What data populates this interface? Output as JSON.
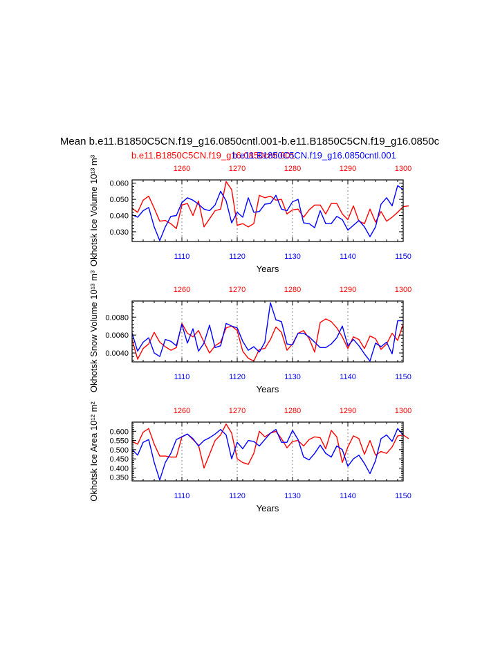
{
  "header": {
    "title": "Mean b.e11.B1850C5CN.f19_g16.0850cntl.001-b.e11.B1850C5CN.f19_g16.0850c",
    "case_red": "b.e11.B1850C5CN.f19_g16.0850cntl.001",
    "case_blue": "b.e11.B1850C5CN.f19_g16.0850cntl.001"
  },
  "colors": {
    "red": "#ff0000",
    "blue": "#0000ff",
    "axis": "#000000",
    "grid": "#808080"
  },
  "chart_data": [
    {
      "type": "line",
      "ylabel": "Okhotsk Ice Volume 10¹³ m³",
      "xlabel": "Years",
      "ylim": [
        0.024,
        0.062
      ],
      "yticks": [
        0.03,
        0.04,
        0.05,
        0.06
      ],
      "ytick_labels": [
        "0.030",
        "0.040",
        "0.050",
        "0.060"
      ],
      "bottom_axis": {
        "xlim": [
          1101,
          1150
        ],
        "ticks": [
          1110,
          1120,
          1130,
          1140,
          1150
        ]
      },
      "top_axis": {
        "xlim": [
          1251,
          1300
        ],
        "ticks": [
          1260,
          1270,
          1280,
          1290,
          1300
        ]
      },
      "series": [
        {
          "color": "red",
          "x_start": 1251,
          "values": [
            0.0445,
            0.042,
            0.0495,
            0.052,
            0.0445,
            0.0365,
            0.037,
            0.035,
            0.032,
            0.0465,
            0.0475,
            0.04,
            0.049,
            0.033,
            0.038,
            0.043,
            0.044,
            0.061,
            0.056,
            0.034,
            0.035,
            0.033,
            0.035,
            0.0525,
            0.051,
            0.052,
            0.0495,
            0.05,
            0.041,
            0.0435,
            0.044,
            0.039,
            0.0435,
            0.0465,
            0.0465,
            0.041,
            0.0475,
            0.0475,
            0.041,
            0.0375,
            0.046,
            0.0365,
            0.035,
            0.044,
            0.036,
            0.0425,
            0.0365,
            0.039,
            0.042,
            0.0455,
            0.046
          ]
        },
        {
          "color": "blue",
          "x_start": 1101,
          "values": [
            0.0405,
            0.039,
            0.043,
            0.045,
            0.033,
            0.0245,
            0.033,
            0.0395,
            0.04,
            0.048,
            0.051,
            0.0495,
            0.047,
            0.044,
            0.043,
            0.0465,
            0.055,
            0.049,
            0.0355,
            0.042,
            0.039,
            0.051,
            0.042,
            0.0425,
            0.047,
            0.0475,
            0.0525,
            0.044,
            0.043,
            0.0485,
            0.05,
            0.0355,
            0.035,
            0.0325,
            0.043,
            0.035,
            0.035,
            0.0395,
            0.0375,
            0.031,
            0.034,
            0.037,
            0.033,
            0.027,
            0.033,
            0.047,
            0.051,
            0.046,
            0.0585,
            0.056
          ]
        }
      ]
    },
    {
      "type": "line",
      "ylabel": "Okhotsk Snow Volume 10¹³ m³",
      "xlabel": "Years",
      "ylim": [
        0.003,
        0.0098
      ],
      "yticks": [
        0.004,
        0.006,
        0.008
      ],
      "ytick_labels": [
        "0.0040",
        "0.0060",
        "0.0080"
      ],
      "bottom_axis": {
        "xlim": [
          1101,
          1150
        ],
        "ticks": [
          1110,
          1120,
          1130,
          1140,
          1150
        ]
      },
      "top_axis": {
        "xlim": [
          1251,
          1300
        ],
        "ticks": [
          1260,
          1270,
          1280,
          1290,
          1300
        ]
      },
      "series": [
        {
          "color": "red",
          "x_start": 1251,
          "values": [
            0.0055,
            0.0033,
            0.0045,
            0.005,
            0.0063,
            0.0052,
            0.0047,
            0.0043,
            0.0046,
            0.0073,
            0.0062,
            0.0058,
            0.0065,
            0.0052,
            0.004,
            0.0048,
            0.0052,
            0.0068,
            0.007,
            0.0065,
            0.0042,
            0.0034,
            0.0031,
            0.0044,
            0.0045,
            0.0055,
            0.0069,
            0.0063,
            0.0043,
            0.005,
            0.0062,
            0.0065,
            0.0056,
            0.0041,
            0.0074,
            0.0078,
            0.0075,
            0.0068,
            0.0058,
            0.0045,
            0.0058,
            0.0055,
            0.0045,
            0.0059,
            0.0056,
            0.0044,
            0.005,
            0.0062,
            0.0054,
            0.0072
          ]
        },
        {
          "color": "blue",
          "x_start": 1101,
          "values": [
            0.0062,
            0.0042,
            0.0052,
            0.0057,
            0.004,
            0.0036,
            0.0055,
            0.0053,
            0.0048,
            0.0072,
            0.0051,
            0.0067,
            0.0042,
            0.0051,
            0.0071,
            0.0046,
            0.0048,
            0.0073,
            0.007,
            0.0068,
            0.0053,
            0.0043,
            0.0047,
            0.0041,
            0.0052,
            0.0096,
            0.0077,
            0.0075,
            0.005,
            0.0049,
            0.0062,
            0.0062,
            0.0058,
            0.0052,
            0.0046,
            0.0046,
            0.005,
            0.0057,
            0.007,
            0.0048,
            0.0055,
            0.0048,
            0.0039,
            0.0031,
            0.0051,
            0.0047,
            0.0052,
            0.0039,
            0.0076,
            0.0076
          ]
        }
      ]
    },
    {
      "type": "line",
      "ylabel": "Okhotsk Ice Area 10¹² m²",
      "xlabel": "Years",
      "ylim": [
        0.33,
        0.65
      ],
      "yticks": [
        0.35,
        0.4,
        0.45,
        0.5,
        0.55,
        0.6
      ],
      "ytick_labels": [
        "0.350",
        "0.400",
        "0.450",
        "0.500",
        "0.550",
        "0.600"
      ],
      "bottom_axis": {
        "xlim": [
          1101,
          1150
        ],
        "ticks": [
          1110,
          1120,
          1130,
          1140,
          1150
        ]
      },
      "top_axis": {
        "xlim": [
          1251,
          1300
        ],
        "ticks": [
          1260,
          1270,
          1280,
          1290,
          1300
        ]
      },
      "series": [
        {
          "color": "red",
          "x_start": 1251,
          "values": [
            0.545,
            0.53,
            0.595,
            0.615,
            0.53,
            0.465,
            0.465,
            0.46,
            0.46,
            0.57,
            0.585,
            0.555,
            0.525,
            0.4,
            0.475,
            0.55,
            0.58,
            0.64,
            0.59,
            0.45,
            0.43,
            0.42,
            0.48,
            0.6,
            0.57,
            0.59,
            0.6,
            0.56,
            0.51,
            0.545,
            0.55,
            0.52,
            0.555,
            0.57,
            0.565,
            0.505,
            0.605,
            0.57,
            0.43,
            0.515,
            0.575,
            0.56,
            0.475,
            0.55,
            0.47,
            0.49,
            0.48,
            0.515,
            0.575,
            0.58,
            0.56
          ]
        },
        {
          "color": "blue",
          "x_start": 1101,
          "values": [
            0.5,
            0.47,
            0.54,
            0.555,
            0.43,
            0.335,
            0.43,
            0.48,
            0.555,
            0.57,
            0.585,
            0.56,
            0.52,
            0.55,
            0.565,
            0.585,
            0.61,
            0.58,
            0.45,
            0.54,
            0.505,
            0.55,
            0.545,
            0.52,
            0.555,
            0.59,
            0.61,
            0.54,
            0.54,
            0.605,
            0.555,
            0.46,
            0.445,
            0.48,
            0.525,
            0.48,
            0.46,
            0.52,
            0.5,
            0.41,
            0.45,
            0.47,
            0.425,
            0.37,
            0.44,
            0.56,
            0.58,
            0.545,
            0.615,
            0.58
          ]
        }
      ]
    }
  ]
}
